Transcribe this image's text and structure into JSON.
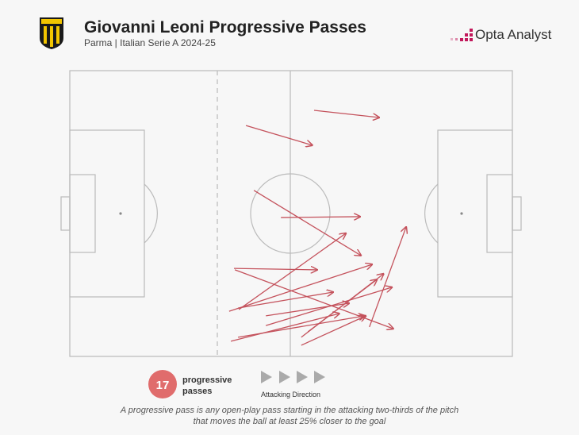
{
  "chart_data": {
    "type": "pass-map",
    "title": "Giovanni Leoni Progressive Passes",
    "subtitle": "Parma | Italian Serie A 2024-25",
    "brand": "Opta Analyst",
    "count": 17,
    "count_label": [
      "progressive",
      "passes"
    ],
    "direction_label": "Attacking Direction",
    "footnote": [
      "A progressive pass is any open-play pass starting in the attacking two-thirds of the pitch",
      "that moves the ball at least 25% closer to the goal"
    ],
    "color": "#c4525c",
    "xlim": [
      0,
      100
    ],
    "ylim": [
      0,
      100
    ],
    "passes": {
      "x": [
        55.2,
        39.8,
        41.6,
        47.7,
        38.2,
        37.1,
        37.3,
        36.0,
        38.0,
        44.3,
        44.3,
        36.4,
        38.0,
        52.3,
        53.8,
        52.3,
        67.7
      ],
      "y": [
        86.1,
        80.8,
        58.1,
        48.6,
        16.4,
        30.8,
        30.3,
        15.8,
        16.9,
        14.2,
        10.8,
        5.3,
        6.7,
        6.7,
        8.6,
        3.9,
        10.3
      ],
      "end_x": [
        69.9,
        54.8,
        65.8,
        65.6,
        62.4,
        55.9,
        73.1,
        68.3,
        59.5,
        63.1,
        72.8,
        60.9,
        66.7,
        70.9,
        69.4,
        66.9,
        76.0
      ],
      "end_y": [
        83.6,
        73.9,
        35.3,
        48.9,
        43.1,
        30.3,
        9.7,
        32.2,
        22.5,
        18.6,
        24.2,
        15.0,
        14.2,
        28.9,
        26.9,
        14.2,
        45.3
      ]
    }
  }
}
